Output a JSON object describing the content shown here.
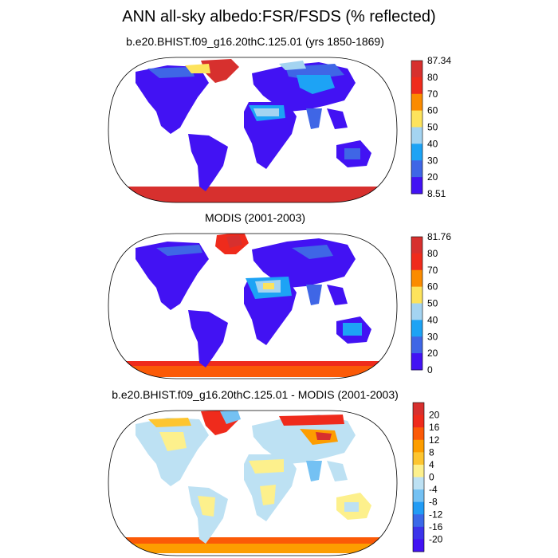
{
  "title": "ANN all-sky albedo:FSR/FSDS (% reflected)",
  "panels": [
    {
      "subtitle": "b.e20.BHIST.f09_g16.20thC.125.01 (yrs 1850-1869)",
      "colorbar": {
        "labels": [
          "87.34",
          "80",
          "70",
          "60",
          "50",
          "40",
          "30",
          "20",
          "8.51"
        ],
        "colors": [
          "#d7302e",
          "#ef2b1c",
          "#fb8b00",
          "#fde35c",
          "#a4d4f1",
          "#1da3f5",
          "#3f66e6",
          "#4212f3"
        ]
      }
    },
    {
      "subtitle": "MODIS (2001-2003)",
      "colorbar": {
        "labels": [
          "81.76",
          "80",
          "70",
          "60",
          "50",
          "40",
          "30",
          "20",
          "0"
        ],
        "colors": [
          "#d7302e",
          "#ef2b1c",
          "#fb8b00",
          "#fde35c",
          "#a4d4f1",
          "#1da3f5",
          "#3f66e6",
          "#4212f3"
        ]
      }
    },
    {
      "subtitle": "b.e20.BHIST.f09_g16.20thC.125.01 - MODIS (2001-2003)",
      "colorbar": {
        "labels": [
          "20",
          "16",
          "12",
          "8",
          "4",
          "0",
          "-4",
          "-8",
          "-12",
          "-16",
          "-20"
        ],
        "colors": [
          "#d7302e",
          "#ef2b1c",
          "#fb5a07",
          "#fd9d00",
          "#fdc530",
          "#fdf08c",
          "#bde1f3",
          "#74c1f3",
          "#229cf5",
          "#3b69e8",
          "#3c34ea",
          "#4212f3"
        ]
      }
    }
  ]
}
